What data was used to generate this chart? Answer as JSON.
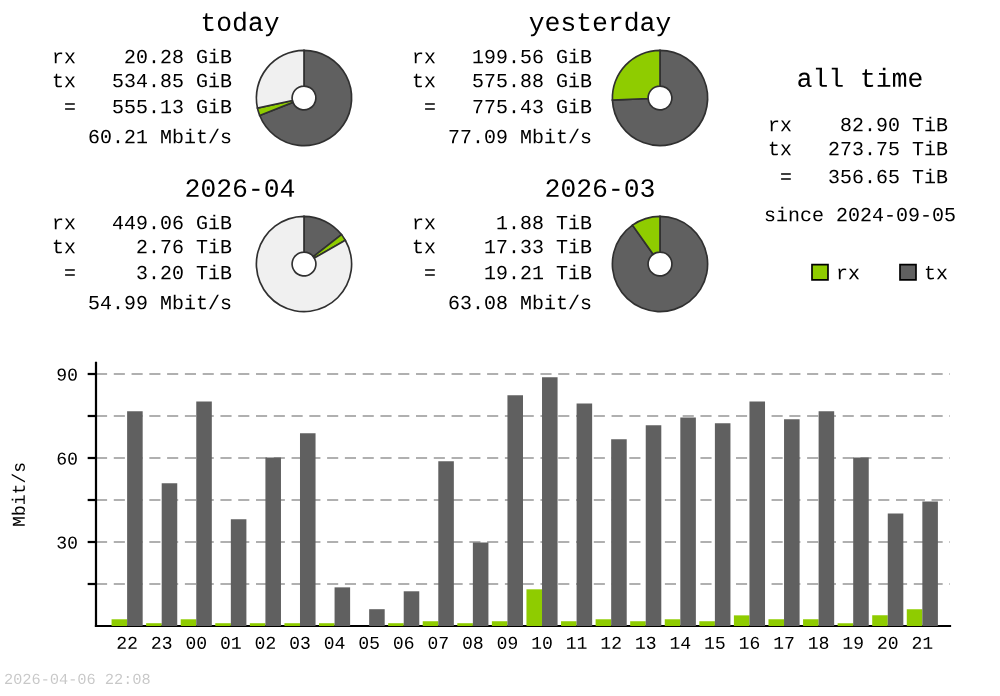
{
  "chart_data": [
    {
      "type": "donut",
      "title": "today",
      "categories": [
        null,
        null,
        null
      ],
      "values": [
        69.0,
        2.6,
        28.4
      ],
      "colors": [
        "#606060",
        "#8fcc00",
        "#f0f0f0"
      ],
      "annotations": [
        "rx    20.28 GiB",
        "tx   534.85 GiB",
        " =   555.13 GiB",
        "60.21 Mbit/s"
      ]
    },
    {
      "type": "donut",
      "title": "yesterday",
      "categories": [
        null,
        null
      ],
      "values": [
        74.3,
        25.7
      ],
      "colors": [
        "#606060",
        "#8fcc00"
      ],
      "annotations": [
        "rx   199.56 GiB",
        "tx   575.88 GiB",
        " =   775.43 GiB",
        "77.09 Mbit/s"
      ]
    },
    {
      "type": "other",
      "title": "all time",
      "annotations": [
        "rx    82.90 TiB",
        "tx   273.75 TiB",
        " =   356.65 TiB",
        "since 2024-09-05"
      ]
    },
    {
      "type": "donut",
      "title": "2026-04",
      "categories": [
        null,
        null,
        null
      ],
      "values": [
        14.4,
        2.3,
        83.3
      ],
      "colors": [
        "#606060",
        "#8fcc00",
        "#f0f0f0"
      ],
      "annotations": [
        "rx   449.06 GiB",
        "tx     2.76 TiB",
        " =     3.20 TiB",
        "54.99 Mbit/s"
      ]
    },
    {
      "type": "donut",
      "title": "2026-03",
      "categories": [
        null,
        null
      ],
      "values": [
        90.2,
        9.8
      ],
      "colors": [
        "#606060",
        "#8fcc00"
      ],
      "annotations": [
        "rx     1.88 TiB",
        "tx    17.33 TiB",
        " =    19.21 TiB",
        "63.08 Mbit/s"
      ]
    },
    {
      "type": "bar",
      "ylabel": "Mbit/s",
      "categories": [
        "22",
        "23",
        "00",
        "01",
        "02",
        "03",
        "04",
        "05",
        "06",
        "07",
        "08",
        "09",
        "10",
        "11",
        "12",
        "13",
        "14",
        "15",
        "16",
        "17",
        "18",
        "19",
        "20",
        "21"
      ],
      "series": [
        {
          "name": "rx",
          "color": "#8fcc00",
          "values": [
            2.4,
            1,
            2.4,
            1,
            1,
            1,
            1,
            0,
            1,
            1.7,
            1,
            1.7,
            13.1,
            1.7,
            2.4,
            1.7,
            2.4,
            1.7,
            3.8,
            2.4,
            2.4,
            1,
            3.8,
            6
          ]
        },
        {
          "name": "tx",
          "color": "#606060",
          "values": [
            76.7,
            51,
            80.2,
            38.1,
            60.2,
            68.8,
            13.8,
            6,
            12.4,
            58.8,
            29.8,
            82.4,
            88.8,
            79.5,
            66.7,
            71.7,
            74.5,
            72.4,
            80.2,
            73.8,
            76.7,
            60.2,
            40.2,
            44.5
          ]
        }
      ],
      "ylim": [
        0,
        94
      ],
      "yticks": [
        {
          "value": 15,
          "label": null
        },
        30,
        {
          "value": 45,
          "label": null
        },
        60,
        {
          "value": 75,
          "label": null
        },
        90
      ],
      "grid": "y",
      "legend": "top right",
      "annotations": [
        "2026-04-06 22:08"
      ]
    }
  ]
}
